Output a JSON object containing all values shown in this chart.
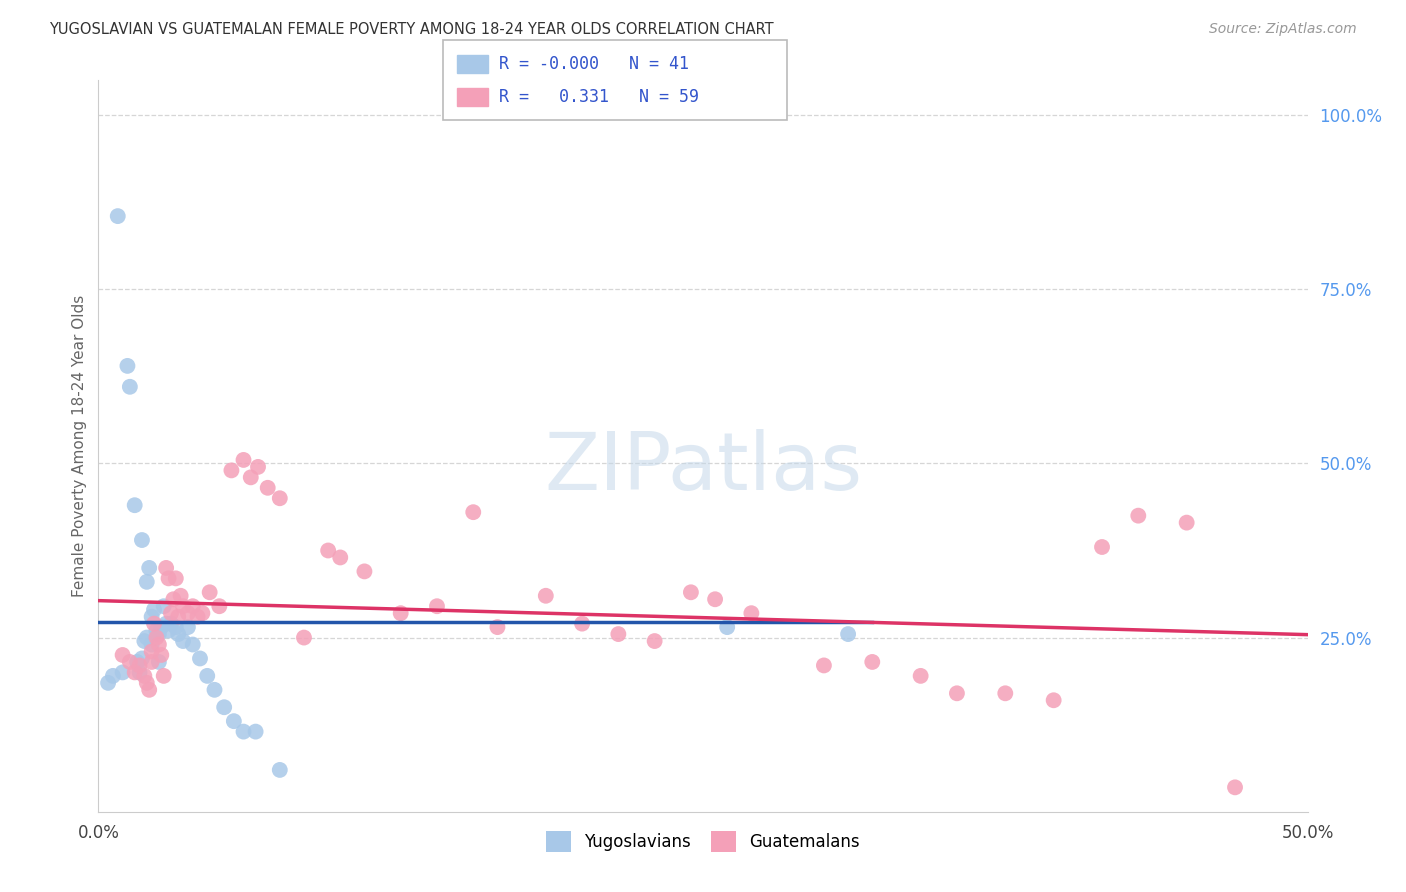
{
  "title": "YUGOSLAVIAN VS GUATEMALAN FEMALE POVERTY AMONG 18-24 YEAR OLDS CORRELATION CHART",
  "source": "Source: ZipAtlas.com",
  "ylabel": "Female Poverty Among 18-24 Year Olds",
  "xlim": [
    0.0,
    0.5
  ],
  "ylim": [
    0.0,
    1.05
  ],
  "x_tick_positions": [
    0.0,
    0.1,
    0.2,
    0.3,
    0.4,
    0.5
  ],
  "x_tick_labels": [
    "0.0%",
    "",
    "",
    "",
    "",
    "50.0%"
  ],
  "y_ticks_right": [
    0.25,
    0.5,
    0.75,
    1.0
  ],
  "y_tick_labels_right": [
    "25.0%",
    "50.0%",
    "75.0%",
    "100.0%"
  ],
  "legend_r_yug": "-0.000",
  "legend_n_yug": "41",
  "legend_r_guat": "0.331",
  "legend_n_guat": "59",
  "yug_color": "#a8c8e8",
  "guat_color": "#f4a0b8",
  "yug_line_color": "#2255aa",
  "guat_line_color": "#dd3366",
  "dashed_line_y": 0.25,
  "watermark": "ZIPatlas",
  "yug_x": [
    0.004,
    0.006,
    0.008,
    0.01,
    0.012,
    0.013,
    0.015,
    0.016,
    0.017,
    0.018,
    0.018,
    0.019,
    0.02,
    0.02,
    0.021,
    0.022,
    0.022,
    0.023,
    0.024,
    0.025,
    0.025,
    0.026,
    0.027,
    0.028,
    0.029,
    0.03,
    0.032,
    0.033,
    0.035,
    0.037,
    0.039,
    0.042,
    0.045,
    0.048,
    0.052,
    0.056,
    0.06,
    0.065,
    0.075,
    0.26,
    0.31
  ],
  "yug_y": [
    0.185,
    0.195,
    0.855,
    0.2,
    0.64,
    0.61,
    0.44,
    0.215,
    0.2,
    0.39,
    0.22,
    0.245,
    0.33,
    0.25,
    0.35,
    0.28,
    0.24,
    0.29,
    0.26,
    0.255,
    0.215,
    0.265,
    0.295,
    0.27,
    0.26,
    0.27,
    0.265,
    0.255,
    0.245,
    0.265,
    0.24,
    0.22,
    0.195,
    0.175,
    0.15,
    0.13,
    0.115,
    0.115,
    0.06,
    0.265,
    0.255
  ],
  "guat_x": [
    0.01,
    0.013,
    0.015,
    0.017,
    0.019,
    0.02,
    0.021,
    0.022,
    0.022,
    0.023,
    0.024,
    0.025,
    0.026,
    0.027,
    0.028,
    0.029,
    0.03,
    0.031,
    0.032,
    0.033,
    0.034,
    0.035,
    0.037,
    0.039,
    0.041,
    0.043,
    0.046,
    0.05,
    0.055,
    0.06,
    0.063,
    0.066,
    0.07,
    0.075,
    0.085,
    0.095,
    0.1,
    0.11,
    0.125,
    0.14,
    0.155,
    0.165,
    0.185,
    0.2,
    0.215,
    0.23,
    0.245,
    0.255,
    0.27,
    0.3,
    0.32,
    0.34,
    0.355,
    0.375,
    0.395,
    0.415,
    0.43,
    0.45,
    0.47
  ],
  "guat_y": [
    0.225,
    0.215,
    0.2,
    0.21,
    0.195,
    0.185,
    0.175,
    0.23,
    0.215,
    0.27,
    0.25,
    0.24,
    0.225,
    0.195,
    0.35,
    0.335,
    0.285,
    0.305,
    0.335,
    0.28,
    0.31,
    0.295,
    0.285,
    0.295,
    0.28,
    0.285,
    0.315,
    0.295,
    0.49,
    0.505,
    0.48,
    0.495,
    0.465,
    0.45,
    0.25,
    0.375,
    0.365,
    0.345,
    0.285,
    0.295,
    0.43,
    0.265,
    0.31,
    0.27,
    0.255,
    0.245,
    0.315,
    0.305,
    0.285,
    0.21,
    0.215,
    0.195,
    0.17,
    0.17,
    0.16,
    0.38,
    0.425,
    0.415,
    0.035
  ]
}
